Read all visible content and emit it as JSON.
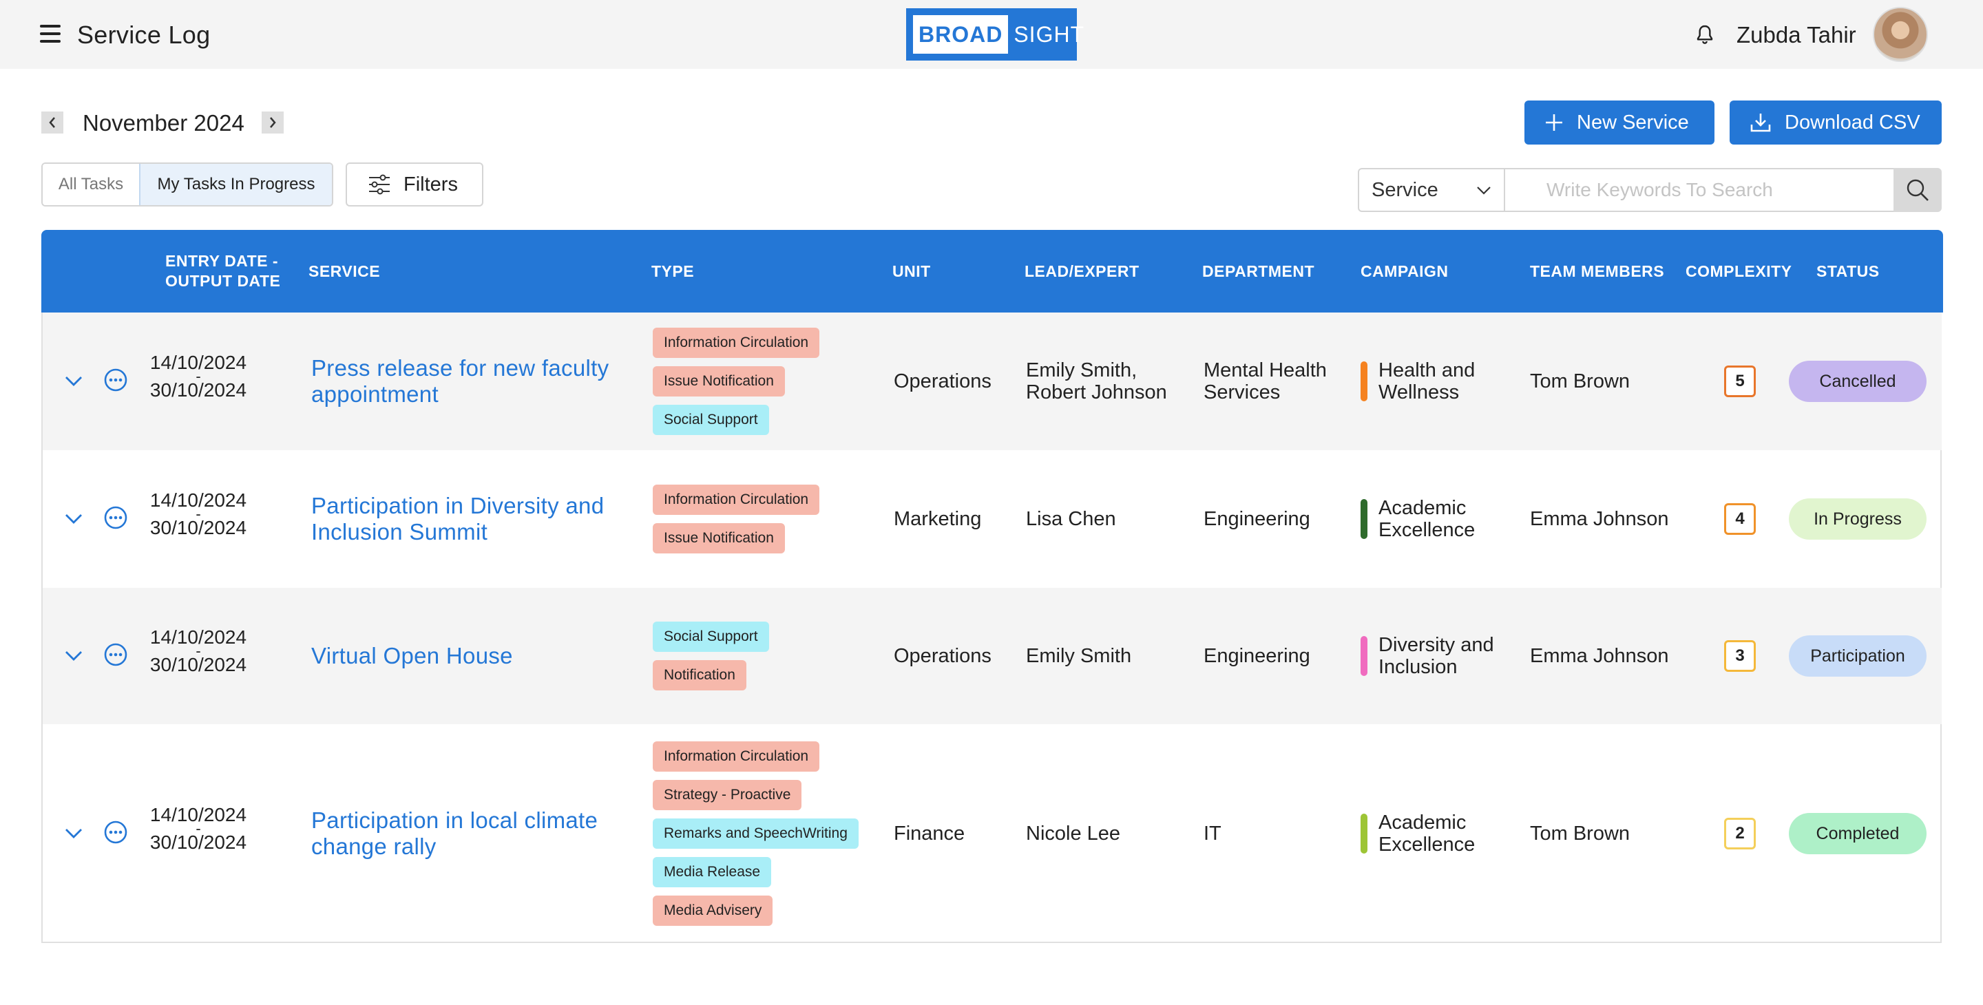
{
  "app": {
    "title": "Service Log",
    "logo_left": "BROAD",
    "logo_right": "SIGHT",
    "user_name": "Zubda Tahir"
  },
  "toolbar": {
    "month": "November 2024",
    "new_service_label": "New Service",
    "download_csv_label": "Download CSV",
    "tab_all": "All Tasks",
    "tab_mine": "My Tasks In Progress",
    "filters_label": "Filters",
    "search_field_value": "Service",
    "search_placeholder": "Write Keywords To Search"
  },
  "table": {
    "headers": {
      "dates_line1": "ENTRY DATE -",
      "dates_line2": "OUTPUT DATE",
      "service": "SERVICE",
      "type": "TYPE",
      "unit": "UNIT",
      "lead": "LEAD/EXPERT",
      "department": "DEPARTMENT",
      "campaign": "CAMPAIGN",
      "team": "TEAM MEMBERS",
      "complexity": "COMPLEXITY",
      "status": "STATUS"
    },
    "rows": [
      {
        "entry": "14/10/2024",
        "sep": "-",
        "output": "30/10/2024",
        "service": "Press release for new faculty appointment",
        "types": [
          "Information Circulation",
          "Issue Notification",
          "Social Support"
        ],
        "unit": "Operations",
        "lead_1": "Emily Smith,",
        "lead_2": "Robert Johnson",
        "dept_1": "Mental Health",
        "dept_2": "Services",
        "campaign_1": "Health and",
        "campaign_2": "Wellness",
        "campaign_color": "#f58220",
        "team": "Tom Brown",
        "complexity": "5",
        "complexity_color": "#e8762b",
        "status": "Cancelled",
        "status_color": "#c5b6ef"
      },
      {
        "entry": "14/10/2024",
        "sep": "-",
        "output": "30/10/2024",
        "service": "Participation in Diversity and Inclusion Summit",
        "types": [
          "Information Circulation",
          "Issue Notification"
        ],
        "unit": "Marketing",
        "lead_1": "Lisa Chen",
        "lead_2": "",
        "dept_1": "Engineering",
        "dept_2": "",
        "campaign_1": "Academic",
        "campaign_2": "Excellence",
        "campaign_color": "#2e6b2c",
        "team": "Emma Johnson",
        "complexity": "4",
        "complexity_color": "#f0922a",
        "status": "In Progress",
        "status_color": "#e1f5cf"
      },
      {
        "entry": "14/10/2024",
        "sep": "-",
        "output": "30/10/2024",
        "service": "Virtual Open House",
        "types": [
          "Social Support",
          "Notification"
        ],
        "unit": "Operations",
        "lead_1": "Emily Smith",
        "lead_2": "",
        "dept_1": "Engineering",
        "dept_2": "",
        "campaign_1": "Diversity and",
        "campaign_2": "Inclusion",
        "campaign_color": "#f06bbf",
        "team": "Emma Johnson",
        "complexity": "3",
        "complexity_color": "#f4b83a",
        "status": "Participation",
        "status_color": "#c8dcf8"
      },
      {
        "entry": "14/10/2024",
        "sep": "-",
        "output": "30/10/2024",
        "service": "Participation in local climate change rally",
        "types": [
          "Information Circulation",
          "Strategy - Proactive",
          "Remarks and SpeechWriting",
          "Media Release",
          "Media Advisery"
        ],
        "unit": "Finance",
        "lead_1": "Nicole Lee",
        "lead_2": "",
        "dept_1": "IT",
        "dept_2": "",
        "campaign_1": "Academic",
        "campaign_2": "Excellence",
        "campaign_color": "#9dc536",
        "team": "Tom Brown",
        "complexity": "2",
        "complexity_color": "#f4cf5a",
        "status": "Completed",
        "status_color": "#aef0c8"
      }
    ]
  },
  "icons": {
    "menu": "hamburger-icon",
    "bell": "bell-icon",
    "plus": "plus-icon",
    "download": "download-icon",
    "filters": "sliders-icon",
    "search": "search-icon",
    "expand": "chevron-down-icon",
    "more": "more-options-icon"
  },
  "colors": {
    "primary": "#2477d6",
    "tag_red": "#f6b8ab",
    "tag_cyan": "#a9eef7"
  }
}
